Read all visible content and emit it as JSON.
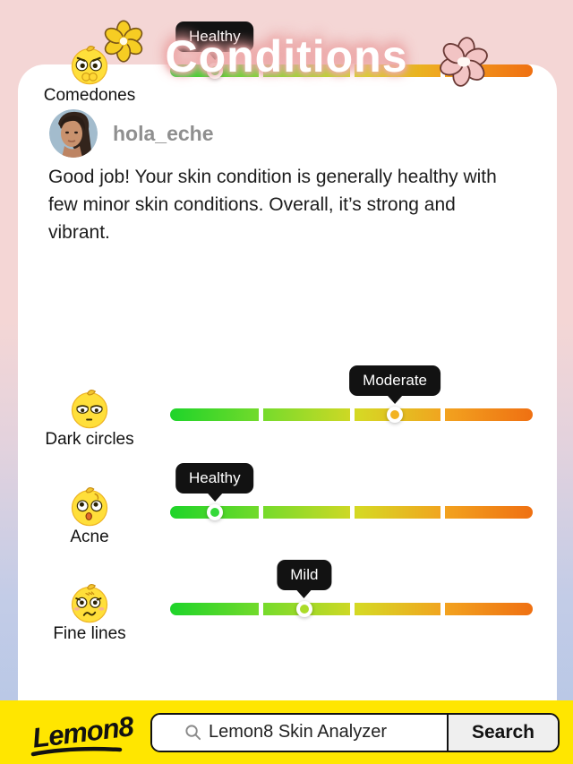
{
  "page": {
    "title": "Conditions"
  },
  "profile": {
    "username": "hola_eche"
  },
  "summary": "Good job! Your skin condition is generally healthy with few minor skin conditions. Overall, it’s strong and vibrant.",
  "conditions": [
    {
      "name": "Dark circles",
      "level": "Moderate",
      "pct": 62,
      "marker_color": "#F2B322",
      "emoji": "tired-lemon-emoji"
    },
    {
      "name": "Acne",
      "level": "Healthy",
      "pct": 12.3,
      "marker_color": "#35D93A",
      "emoji": "surprised-lemon-emoji"
    },
    {
      "name": "Fine lines",
      "level": "Mild",
      "pct": 37,
      "marker_color": "#ABDC29",
      "emoji": "distressed-lemon-emoji"
    },
    {
      "name": "Comedones",
      "level": "Healthy",
      "pct": 12.3,
      "marker_color": "#35D93A",
      "emoji": "angry-lemon-emoji"
    }
  ],
  "footer": {
    "brand": "Lemon8",
    "search_value": "Lemon8 Skin Analyzer",
    "search_button_label": "Search"
  },
  "colors": {
    "background_top": "#F4D6D5",
    "background_bottom": "#B4C6E6",
    "footer_yellow": "#FFE600",
    "tooltip_bg": "#121212",
    "bar_green": "#1ED42A",
    "bar_orange": "#EF7012"
  }
}
